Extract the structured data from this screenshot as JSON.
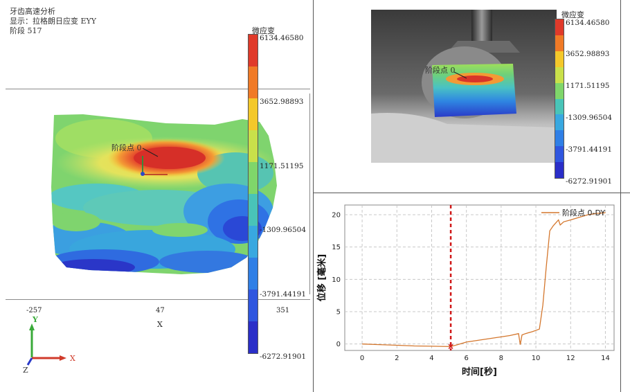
{
  "main_view": {
    "info": {
      "title": "牙齿高速分析",
      "display": "显示：拉格朗日应变 EYY",
      "stage": "阶段 517"
    },
    "colorbar": {
      "title": "微应变",
      "ticks": [
        "6134.46580",
        "3652.98893",
        "1171.51195",
        "-1309.96504",
        "-3791.44191",
        "-6272.91901"
      ],
      "colors": [
        "#e03a2a",
        "#f07a26",
        "#f4c82a",
        "#c9e04a",
        "#7fd66a",
        "#49c4b8",
        "#38a8e0",
        "#2f7fe6",
        "#2f56df",
        "#2a2ec8"
      ]
    },
    "point_label": "阶段点 0",
    "x_ticks": [
      "-257",
      "47",
      "351"
    ],
    "x_axis_label": "X",
    "triad": {
      "y": "Y",
      "x": "X",
      "z": "Z"
    }
  },
  "camera_view": {
    "colorbar": {
      "title": "微应变",
      "ticks": [
        "6134.46580",
        "3652.98893",
        "1171.51195",
        "-1309.96504",
        "-3791.44191",
        "-6272.91901"
      ]
    },
    "point_label": "阶段点 0"
  },
  "chart_data": {
    "type": "line",
    "xlabel": "时间[秒]",
    "ylabel": "位移 [毫米]",
    "xlim": [
      -1,
      14.5
    ],
    "ylim": [
      -1,
      21.5
    ],
    "x_ticks": [
      0,
      2,
      4,
      6,
      8,
      10,
      12,
      14
    ],
    "y_ticks": [
      0,
      5,
      10,
      15,
      20
    ],
    "grid": true,
    "legend_position": "top-right",
    "marker_time": 5.1,
    "series": [
      {
        "name": "阶段点 0-DY",
        "color": "#d4762c",
        "x": [
          0,
          1,
          2,
          3,
          4,
          5.1,
          5.5,
          6,
          7,
          8,
          8.5,
          9,
          9.1,
          9.2,
          9.4,
          9.8,
          10.2,
          10.4,
          10.6,
          10.8,
          11.0,
          11.3,
          11.4,
          11.6,
          12,
          12.5,
          13,
          13.5,
          14
        ],
        "y": [
          0,
          -0.1,
          -0.2,
          -0.3,
          -0.35,
          -0.4,
          -0.1,
          0.3,
          0.7,
          1.1,
          1.3,
          1.6,
          -0.1,
          1.4,
          1.6,
          1.9,
          2.3,
          6.0,
          12.0,
          17.5,
          18.3,
          19.2,
          18.4,
          18.9,
          19.2,
          19.6,
          20.0,
          20.2,
          20.3
        ]
      }
    ]
  }
}
